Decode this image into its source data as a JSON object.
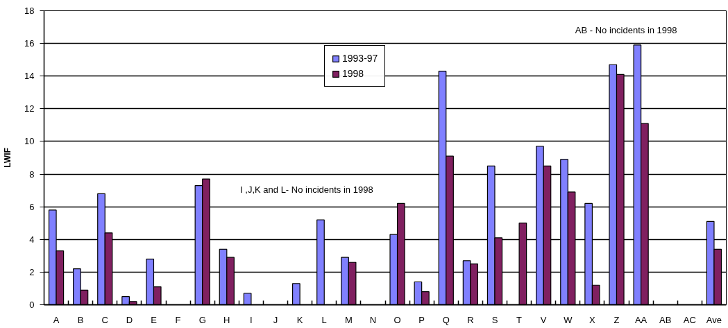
{
  "chart_data": {
    "type": "bar",
    "ylabel": "LWIF",
    "categories": [
      "A",
      "B",
      "C",
      "D",
      "E",
      "F",
      "G",
      "H",
      "I",
      "J",
      "K",
      "L",
      "M",
      "N",
      "O",
      "P",
      "Q",
      "R",
      "S",
      "T",
      "V",
      "W",
      "X",
      "Z",
      "AA",
      "AB",
      "AC",
      "Ave"
    ],
    "series": [
      {
        "name": "1993-97",
        "color": "#8080ff",
        "values": [
          5.8,
          2.2,
          6.8,
          0.5,
          2.8,
          null,
          7.3,
          3.4,
          0.7,
          null,
          1.3,
          5.2,
          2.9,
          null,
          4.3,
          1.4,
          14.3,
          2.7,
          8.5,
          null,
          9.7,
          8.9,
          6.2,
          14.7,
          15.9,
          null,
          null,
          5.1
        ]
      },
      {
        "name": "1998",
        "color": "#802060",
        "values": [
          3.3,
          0.9,
          4.4,
          0.2,
          1.1,
          null,
          7.7,
          2.9,
          null,
          null,
          null,
          null,
          2.6,
          null,
          6.2,
          0.8,
          9.1,
          2.5,
          4.1,
          5.0,
          8.5,
          6.9,
          1.2,
          14.1,
          11.1,
          null,
          null,
          3.4
        ]
      }
    ],
    "ylim": [
      0,
      18
    ],
    "yticks": [
      0,
      2,
      4,
      6,
      8,
      10,
      12,
      14,
      16,
      18
    ],
    "grid": "y",
    "legend": "top",
    "annotations": [
      "I ,J,K and L- No incidents in 1998",
      "AB - No incidents in 1998"
    ]
  }
}
